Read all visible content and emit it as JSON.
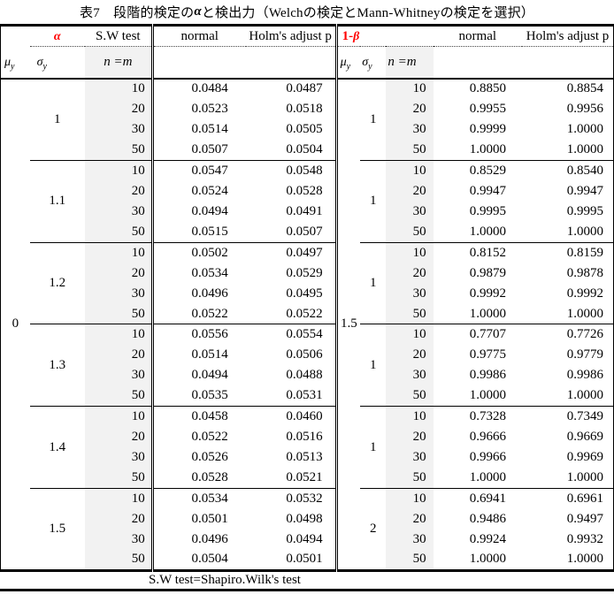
{
  "title": {
    "prefix": "表7　段階的検定の",
    "alpha": "α",
    "suffix": "と検出力（Welchの検定とMann-Whitneyの検定を選択）"
  },
  "footnote": "S.W test=Shapiro.Wilk's test",
  "colors": {
    "accent_red": "#ff0000",
    "shaded_column": "#f2f2f2",
    "border_black": "#000000"
  },
  "left_table": {
    "header1": {
      "alpha": "α",
      "sw_test": "S.W test",
      "normal": "normal",
      "holm": "Holm's adjust p"
    },
    "header2": {
      "mu_base": "μ",
      "mu_sub": "y",
      "sigma_base": "σ",
      "sigma_sub": "y",
      "nm": "n =m"
    },
    "mu_value": "0",
    "groups": [
      {
        "sigma": "1",
        "rows": [
          [
            "10",
            "0.0484",
            "0.0487"
          ],
          [
            "20",
            "0.0523",
            "0.0518"
          ],
          [
            "30",
            "0.0514",
            "0.0505"
          ],
          [
            "50",
            "0.0507",
            "0.0504"
          ]
        ]
      },
      {
        "sigma": "1.1",
        "rows": [
          [
            "10",
            "0.0547",
            "0.0548"
          ],
          [
            "20",
            "0.0524",
            "0.0528"
          ],
          [
            "30",
            "0.0494",
            "0.0491"
          ],
          [
            "50",
            "0.0515",
            "0.0507"
          ]
        ]
      },
      {
        "sigma": "1.2",
        "rows": [
          [
            "10",
            "0.0502",
            "0.0497"
          ],
          [
            "20",
            "0.0534",
            "0.0529"
          ],
          [
            "30",
            "0.0496",
            "0.0495"
          ],
          [
            "50",
            "0.0522",
            "0.0522"
          ]
        ]
      },
      {
        "sigma": "1.3",
        "rows": [
          [
            "10",
            "0.0556",
            "0.0554"
          ],
          [
            "20",
            "0.0514",
            "0.0506"
          ],
          [
            "30",
            "0.0494",
            "0.0488"
          ],
          [
            "50",
            "0.0535",
            "0.0531"
          ]
        ]
      },
      {
        "sigma": "1.4",
        "rows": [
          [
            "10",
            "0.0458",
            "0.0460"
          ],
          [
            "20",
            "0.0522",
            "0.0516"
          ],
          [
            "30",
            "0.0526",
            "0.0513"
          ],
          [
            "50",
            "0.0528",
            "0.0521"
          ]
        ]
      },
      {
        "sigma": "1.5",
        "rows": [
          [
            "10",
            "0.0534",
            "0.0532"
          ],
          [
            "20",
            "0.0501",
            "0.0498"
          ],
          [
            "30",
            "0.0496",
            "0.0494"
          ],
          [
            "50",
            "0.0504",
            "0.0501"
          ]
        ]
      }
    ]
  },
  "right_table": {
    "header1": {
      "beta_prefix": "1-",
      "beta": "β",
      "normal": "normal",
      "holm": "Holm's adjust p"
    },
    "header2": {
      "mu_base": "μ",
      "mu_sub": "y",
      "sigma_base": "σ",
      "sigma_sub": "y",
      "nm": "n =m"
    },
    "mu_value": "1.5",
    "groups": [
      {
        "sigma": "1",
        "rows": [
          [
            "10",
            "0.8850",
            "0.8854"
          ],
          [
            "20",
            "0.9955",
            "0.9956"
          ],
          [
            "30",
            "0.9999",
            "1.0000"
          ],
          [
            "50",
            "1.0000",
            "1.0000"
          ]
        ]
      },
      {
        "sigma": "1",
        "rows": [
          [
            "10",
            "0.8529",
            "0.8540"
          ],
          [
            "20",
            "0.9947",
            "0.9947"
          ],
          [
            "30",
            "0.9995",
            "0.9995"
          ],
          [
            "50",
            "1.0000",
            "1.0000"
          ]
        ]
      },
      {
        "sigma": "1",
        "rows": [
          [
            "10",
            "0.8152",
            "0.8159"
          ],
          [
            "20",
            "0.9879",
            "0.9878"
          ],
          [
            "30",
            "0.9992",
            "0.9992"
          ],
          [
            "50",
            "1.0000",
            "1.0000"
          ]
        ]
      },
      {
        "sigma": "1",
        "rows": [
          [
            "10",
            "0.7707",
            "0.7726"
          ],
          [
            "20",
            "0.9775",
            "0.9779"
          ],
          [
            "30",
            "0.9986",
            "0.9986"
          ],
          [
            "50",
            "1.0000",
            "1.0000"
          ]
        ]
      },
      {
        "sigma": "1",
        "rows": [
          [
            "10",
            "0.7328",
            "0.7349"
          ],
          [
            "20",
            "0.9666",
            "0.9669"
          ],
          [
            "30",
            "0.9966",
            "0.9969"
          ],
          [
            "50",
            "1.0000",
            "1.0000"
          ]
        ]
      },
      {
        "sigma": "2",
        "rows": [
          [
            "10",
            "0.6941",
            "0.6961"
          ],
          [
            "20",
            "0.9486",
            "0.9497"
          ],
          [
            "30",
            "0.9924",
            "0.9932"
          ],
          [
            "50",
            "1.0000",
            "1.0000"
          ]
        ]
      }
    ]
  }
}
